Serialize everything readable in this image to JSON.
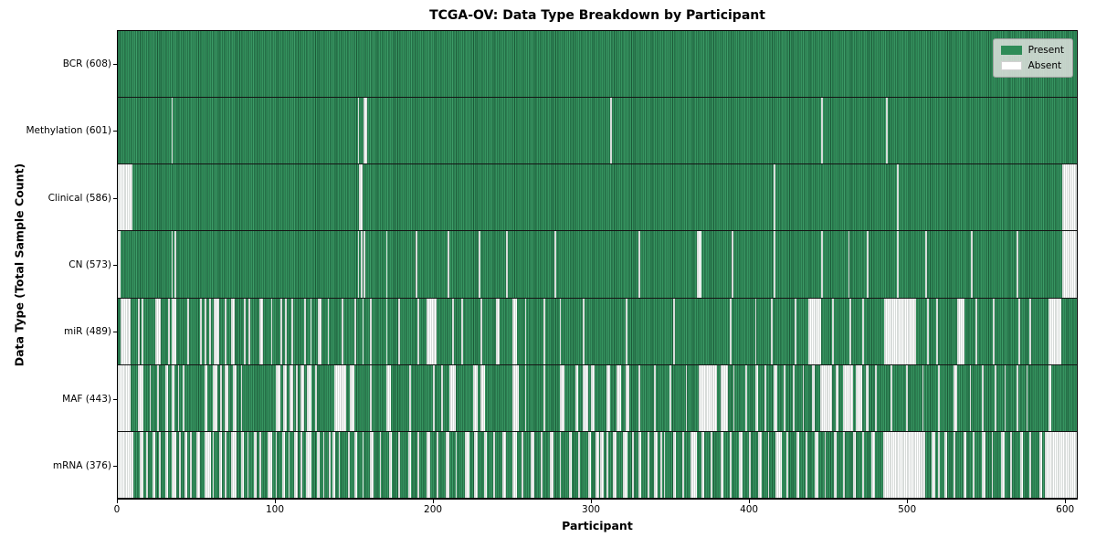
{
  "colors": {
    "present": "#2e8b57",
    "present_stripe_dark": "#1c5a38",
    "present_stripe_light": "#3d9c68",
    "absent": "#ffffff",
    "absent_stripe": "#b2b8b5",
    "axis": "#000000",
    "legend_bg": "#dadeda"
  },
  "chart_data": {
    "type": "heatmap",
    "title": "TCGA-OV: Data Type Breakdown by Participant",
    "xlabel": "Participant",
    "ylabel": "Data Type (Total Sample Count)",
    "legend_labels": [
      "Present",
      "Absent"
    ],
    "legend_position": "upper right",
    "grid": false,
    "x_range": [
      0,
      608
    ],
    "total_participants": 608,
    "x_ticks": [
      0,
      100,
      200,
      300,
      400,
      500,
      600
    ],
    "rows": [
      {
        "label": "BCR (608)",
        "data_type": "BCR",
        "present_count": 608,
        "absent_count": 0,
        "absent_runs": []
      },
      {
        "label": "Methylation (601)",
        "data_type": "Methylation",
        "present_count": 601,
        "absent_count": 7,
        "absent_runs": [
          [
            34,
            1
          ],
          [
            152,
            1
          ],
          [
            156,
            2
          ],
          [
            312,
            1
          ],
          [
            446,
            1
          ],
          [
            487,
            1
          ]
        ]
      },
      {
        "label": "Clinical (586)",
        "data_type": "Clinical",
        "present_count": 586,
        "absent_count": 22,
        "absent_runs": [
          [
            0,
            9
          ],
          [
            153,
            2
          ],
          [
            416,
            1
          ],
          [
            494,
            1
          ],
          [
            599,
            9
          ]
        ]
      },
      {
        "label": "CN (573)",
        "data_type": "CN",
        "present_count": 573,
        "absent_count": 35,
        "absent_runs": [
          [
            0,
            2
          ],
          [
            34,
            1
          ],
          [
            36,
            1
          ],
          [
            152,
            1
          ],
          [
            154,
            1
          ],
          [
            156,
            1
          ],
          [
            170,
            1
          ],
          [
            189,
            1
          ],
          [
            209,
            1
          ],
          [
            229,
            1
          ],
          [
            246,
            1
          ],
          [
            277,
            1
          ],
          [
            330,
            1
          ],
          [
            367,
            3
          ],
          [
            389,
            1
          ],
          [
            416,
            1
          ],
          [
            446,
            1
          ],
          [
            463,
            1
          ],
          [
            475,
            1
          ],
          [
            494,
            1
          ],
          [
            512,
            1
          ],
          [
            541,
            1
          ],
          [
            570,
            1
          ],
          [
            599,
            9
          ]
        ]
      },
      {
        "label": "miR (489)",
        "data_type": "miR",
        "present_count": 489,
        "absent_count": 119,
        "absent_runs": [
          [
            2,
            6
          ],
          [
            13,
            1
          ],
          [
            15,
            1
          ],
          [
            24,
            3
          ],
          [
            32,
            1
          ],
          [
            34,
            3
          ],
          [
            44,
            1
          ],
          [
            52,
            1
          ],
          [
            55,
            1
          ],
          [
            58,
            1
          ],
          [
            61,
            3
          ],
          [
            68,
            1
          ],
          [
            72,
            2
          ],
          [
            80,
            1
          ],
          [
            83,
            1
          ],
          [
            90,
            2
          ],
          [
            97,
            1
          ],
          [
            103,
            1
          ],
          [
            106,
            1
          ],
          [
            110,
            1
          ],
          [
            118,
            1
          ],
          [
            122,
            1
          ],
          [
            127,
            2
          ],
          [
            133,
            1
          ],
          [
            142,
            1
          ],
          [
            150,
            1
          ],
          [
            155,
            1
          ],
          [
            160,
            1
          ],
          [
            170,
            1
          ],
          [
            178,
            1
          ],
          [
            190,
            1
          ],
          [
            196,
            6
          ],
          [
            212,
            1
          ],
          [
            218,
            1
          ],
          [
            230,
            1
          ],
          [
            240,
            2
          ],
          [
            250,
            3
          ],
          [
            258,
            1
          ],
          [
            270,
            1
          ],
          [
            280,
            1
          ],
          [
            295,
            1
          ],
          [
            322,
            1
          ],
          [
            352,
            1
          ],
          [
            388,
            1
          ],
          [
            404,
            1
          ],
          [
            414,
            1
          ],
          [
            429,
            1
          ],
          [
            438,
            8
          ],
          [
            453,
            1
          ],
          [
            464,
            1
          ],
          [
            472,
            1
          ],
          [
            486,
            20
          ],
          [
            513,
            1
          ],
          [
            519,
            1
          ],
          [
            532,
            5
          ],
          [
            544,
            1
          ],
          [
            555,
            1
          ],
          [
            571,
            1
          ],
          [
            578,
            1
          ],
          [
            590,
            8
          ]
        ]
      },
      {
        "label": "MAF (443)",
        "data_type": "MAF",
        "present_count": 443,
        "absent_count": 165,
        "absent_runs": [
          [
            0,
            8
          ],
          [
            13,
            3
          ],
          [
            20,
            1
          ],
          [
            25,
            1
          ],
          [
            30,
            2
          ],
          [
            34,
            2
          ],
          [
            38,
            1
          ],
          [
            41,
            1
          ],
          [
            55,
            2
          ],
          [
            60,
            3
          ],
          [
            65,
            1
          ],
          [
            68,
            2
          ],
          [
            73,
            2
          ],
          [
            78,
            1
          ],
          [
            100,
            3
          ],
          [
            105,
            2
          ],
          [
            109,
            2
          ],
          [
            113,
            1
          ],
          [
            116,
            2
          ],
          [
            120,
            3
          ],
          [
            125,
            1
          ],
          [
            137,
            8
          ],
          [
            147,
            3
          ],
          [
            160,
            1
          ],
          [
            170,
            3
          ],
          [
            185,
            1
          ],
          [
            200,
            1
          ],
          [
            205,
            1
          ],
          [
            210,
            4
          ],
          [
            225,
            3
          ],
          [
            230,
            3
          ],
          [
            250,
            4
          ],
          [
            258,
            1
          ],
          [
            270,
            1
          ],
          [
            280,
            3
          ],
          [
            290,
            2
          ],
          [
            295,
            3
          ],
          [
            300,
            2
          ],
          [
            310,
            2
          ],
          [
            316,
            3
          ],
          [
            322,
            2
          ],
          [
            330,
            1
          ],
          [
            340,
            1
          ],
          [
            350,
            1
          ],
          [
            360,
            1
          ],
          [
            368,
            12
          ],
          [
            382,
            5
          ],
          [
            390,
            1
          ],
          [
            398,
            1
          ],
          [
            404,
            2
          ],
          [
            410,
            1
          ],
          [
            416,
            2
          ],
          [
            422,
            1
          ],
          [
            428,
            1
          ],
          [
            434,
            1
          ],
          [
            440,
            2
          ],
          [
            445,
            8
          ],
          [
            455,
            2
          ],
          [
            460,
            6
          ],
          [
            468,
            4
          ],
          [
            474,
            2
          ],
          [
            480,
            1
          ],
          [
            490,
            1
          ],
          [
            500,
            1
          ],
          [
            510,
            1
          ],
          [
            520,
            1
          ],
          [
            530,
            2
          ],
          [
            540,
            1
          ],
          [
            548,
            1
          ],
          [
            556,
            1
          ],
          [
            562,
            1
          ],
          [
            570,
            1
          ],
          [
            576,
            1
          ],
          [
            590,
            2
          ]
        ]
      },
      {
        "label": "mRNA (376)",
        "data_type": "mRNA",
        "present_count": 376,
        "absent_count": 232,
        "absent_runs": [
          [
            0,
            10
          ],
          [
            14,
            2
          ],
          [
            18,
            1
          ],
          [
            22,
            2
          ],
          [
            26,
            1
          ],
          [
            30,
            2
          ],
          [
            34,
            3
          ],
          [
            39,
            1
          ],
          [
            42,
            2
          ],
          [
            46,
            1
          ],
          [
            50,
            2
          ],
          [
            55,
            4
          ],
          [
            60,
            1
          ],
          [
            64,
            2
          ],
          [
            68,
            1
          ],
          [
            72,
            3
          ],
          [
            78,
            2
          ],
          [
            82,
            1
          ],
          [
            86,
            2
          ],
          [
            90,
            1
          ],
          [
            95,
            3
          ],
          [
            100,
            1
          ],
          [
            104,
            2
          ],
          [
            108,
            1
          ],
          [
            112,
            2
          ],
          [
            116,
            1
          ],
          [
            119,
            4
          ],
          [
            126,
            2
          ],
          [
            130,
            1
          ],
          [
            134,
            1
          ],
          [
            136,
            2
          ],
          [
            140,
            1
          ],
          [
            146,
            1
          ],
          [
            150,
            2
          ],
          [
            155,
            1
          ],
          [
            160,
            2
          ],
          [
            166,
            1
          ],
          [
            172,
            2
          ],
          [
            178,
            1
          ],
          [
            184,
            2
          ],
          [
            190,
            1
          ],
          [
            196,
            2
          ],
          [
            202,
            1
          ],
          [
            208,
            2
          ],
          [
            214,
            1
          ],
          [
            220,
            3
          ],
          [
            226,
            2
          ],
          [
            232,
            2
          ],
          [
            238,
            1
          ],
          [
            244,
            2
          ],
          [
            250,
            3
          ],
          [
            256,
            1
          ],
          [
            262,
            2
          ],
          [
            268,
            1
          ],
          [
            274,
            2
          ],
          [
            280,
            1
          ],
          [
            286,
            2
          ],
          [
            292,
            1
          ],
          [
            298,
            2
          ],
          [
            303,
            2
          ],
          [
            306,
            2
          ],
          [
            310,
            1
          ],
          [
            314,
            2
          ],
          [
            320,
            3
          ],
          [
            326,
            1
          ],
          [
            330,
            2
          ],
          [
            336,
            1
          ],
          [
            340,
            2
          ],
          [
            344,
            1
          ],
          [
            346,
            1
          ],
          [
            352,
            2
          ],
          [
            358,
            1
          ],
          [
            363,
            4
          ],
          [
            370,
            2
          ],
          [
            376,
            1
          ],
          [
            382,
            2
          ],
          [
            388,
            1
          ],
          [
            394,
            2
          ],
          [
            400,
            1
          ],
          [
            406,
            2
          ],
          [
            412,
            1
          ],
          [
            417,
            4
          ],
          [
            424,
            1
          ],
          [
            430,
            2
          ],
          [
            436,
            1
          ],
          [
            442,
            2
          ],
          [
            448,
            1
          ],
          [
            454,
            2
          ],
          [
            460,
            1
          ],
          [
            466,
            2
          ],
          [
            472,
            1
          ],
          [
            478,
            2
          ],
          [
            485,
            27
          ],
          [
            516,
            2
          ],
          [
            520,
            1
          ],
          [
            524,
            2
          ],
          [
            530,
            1
          ],
          [
            536,
            2
          ],
          [
            542,
            1
          ],
          [
            548,
            2
          ],
          [
            554,
            1
          ],
          [
            560,
            2
          ],
          [
            566,
            1
          ],
          [
            572,
            2
          ],
          [
            578,
            1
          ],
          [
            584,
            2
          ],
          [
            588,
            20
          ]
        ]
      }
    ]
  }
}
